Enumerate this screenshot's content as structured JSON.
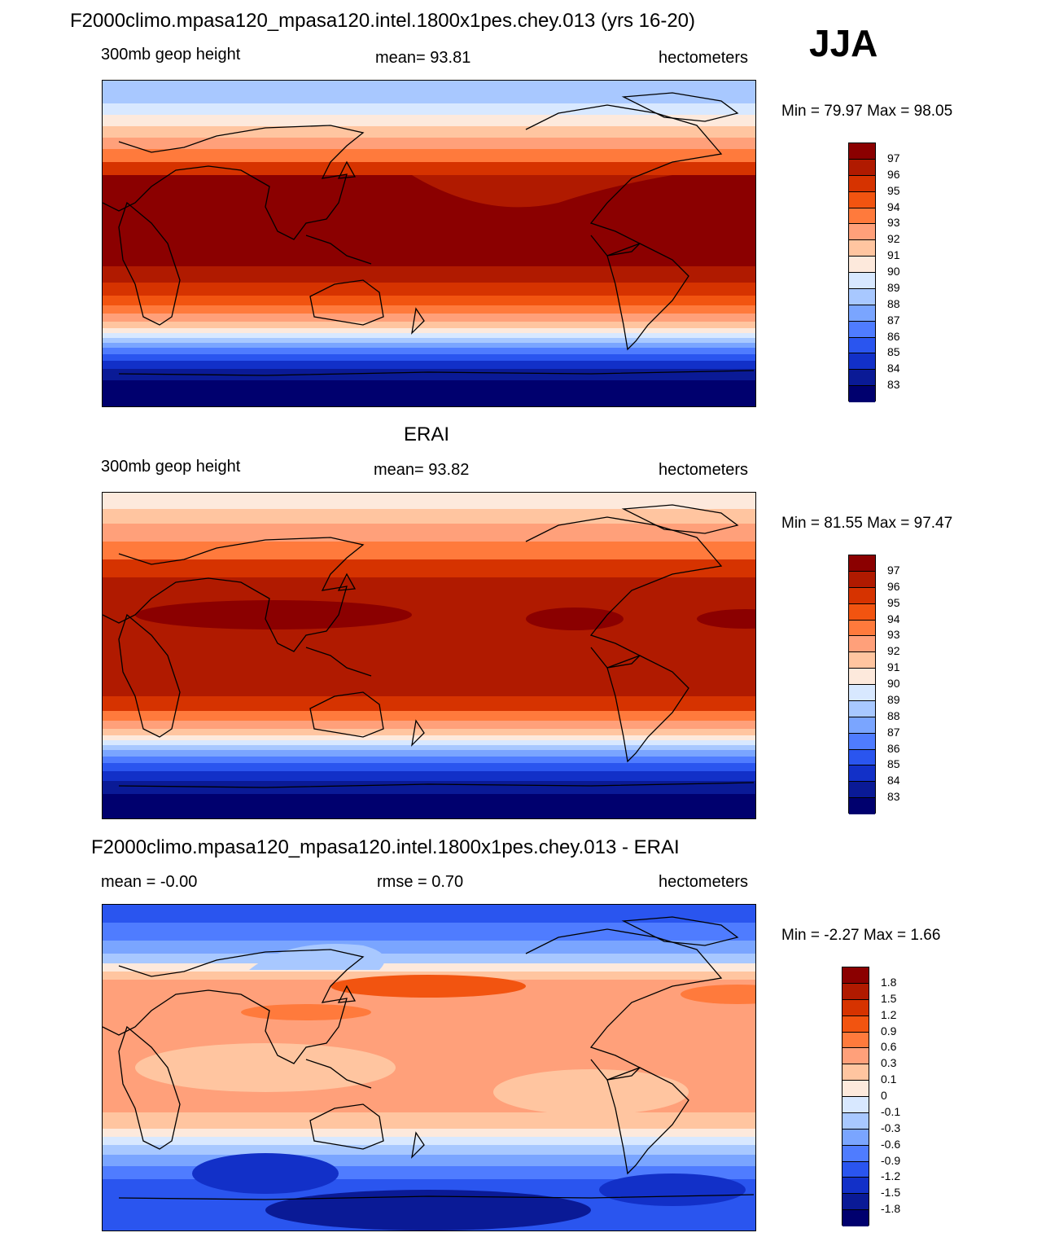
{
  "header": {
    "main_title": "F2000climo.mpasa120_mpasa120.intel.1800x1pes.chey.013 (yrs 16-20)",
    "season": "JJA"
  },
  "panels": [
    {
      "id": "model",
      "title": "",
      "left_label": "300mb geop height",
      "center_label": "mean=  93.81",
      "right_label": "hectometers",
      "minmax": "Min =  79.97 Max =  98.05",
      "colorbar": {
        "levels": [
          "97",
          "96",
          "95",
          "94",
          "93",
          "92",
          "91",
          "90",
          "89",
          "88",
          "87",
          "86",
          "85",
          "84",
          "83"
        ],
        "colors": [
          "#8b0000",
          "#b01a00",
          "#d63300",
          "#f25410",
          "#ff7a3c",
          "#ffa07a",
          "#ffc5a0",
          "#fde9dc",
          "#d8e8ff",
          "#a8c8ff",
          "#7aa5ff",
          "#4f7cff",
          "#2a55ef",
          "#1230c8",
          "#0a1a96",
          "#00006e"
        ]
      }
    },
    {
      "id": "obs",
      "title": "ERAI",
      "left_label": "300mb geop height",
      "center_label": "mean=  93.82",
      "right_label": "hectometers",
      "minmax": "Min =  81.55 Max =  97.47",
      "colorbar": {
        "levels": [
          "97",
          "96",
          "95",
          "94",
          "93",
          "92",
          "91",
          "90",
          "89",
          "88",
          "87",
          "86",
          "85",
          "84",
          "83"
        ],
        "colors": [
          "#8b0000",
          "#b01a00",
          "#d63300",
          "#f25410",
          "#ff7a3c",
          "#ffa07a",
          "#ffc5a0",
          "#fde9dc",
          "#d8e8ff",
          "#a8c8ff",
          "#7aa5ff",
          "#4f7cff",
          "#2a55ef",
          "#1230c8",
          "#0a1a96",
          "#00006e"
        ]
      }
    },
    {
      "id": "diff",
      "title": "F2000climo.mpasa120_mpasa120.intel.1800x1pes.chey.013 - ERAI",
      "left_label": "mean =  -0.00",
      "center_label": "rmse =   0.70",
      "right_label": "hectometers",
      "minmax": "Min =  -2.27 Max =   1.66",
      "colorbar": {
        "levels": [
          "1.8",
          "1.5",
          "1.2",
          "0.9",
          "0.6",
          "0.3",
          "0.1",
          "0",
          "-0.1",
          "-0.3",
          "-0.6",
          "-0.9",
          "-1.2",
          "-1.5",
          "-1.8"
        ],
        "colors": [
          "#8b0000",
          "#b01a00",
          "#d63300",
          "#f25410",
          "#ff7a3c",
          "#ffa07a",
          "#ffc5a0",
          "#fde9dc",
          "#d8e8ff",
          "#a8c8ff",
          "#7aa5ff",
          "#4f7cff",
          "#2a55ef",
          "#1230c8",
          "#0a1a96",
          "#00006e"
        ]
      }
    }
  ]
}
